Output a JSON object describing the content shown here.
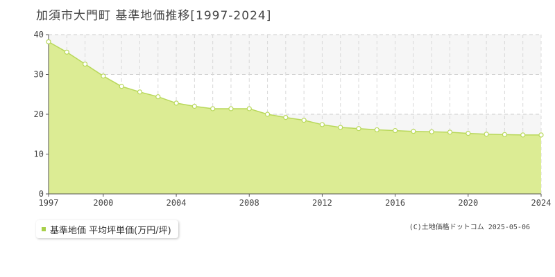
{
  "chart_data": {
    "type": "area",
    "title": "加須市大門町 基準地価推移[1997-2024]",
    "x": [
      1997,
      1998,
      1999,
      2000,
      2001,
      2002,
      2003,
      2004,
      2005,
      2006,
      2007,
      2008,
      2009,
      2010,
      2011,
      2012,
      2013,
      2014,
      2015,
      2016,
      2017,
      2018,
      2019,
      2020,
      2021,
      2022,
      2023,
      2024
    ],
    "series": [
      {
        "name": "基準地価 平均坪単価(万円/坪)",
        "values": [
          38.2,
          35.6,
          32.6,
          29.6,
          27.0,
          25.6,
          24.4,
          22.8,
          22.0,
          21.4,
          21.4,
          21.4,
          20.0,
          19.2,
          18.5,
          17.4,
          16.7,
          16.4,
          16.1,
          15.9,
          15.7,
          15.6,
          15.5,
          15.2,
          15.0,
          14.9,
          14.8,
          14.8
        ]
      }
    ],
    "ylim": [
      0,
      40
    ],
    "yticks": [
      "0",
      "10",
      "20",
      "30",
      "40"
    ],
    "xticks": [
      "1997",
      "2000",
      "2004",
      "2008",
      "2012",
      "2016",
      "2020",
      "2024"
    ],
    "grid": true,
    "legend_position": "bottom-left",
    "colors": {
      "fill": "#dcec94",
      "line": "#b8d85a",
      "marker_fill": "#ffffff",
      "marker_stroke": "#b8d85a",
      "band": "#f6f6f6"
    }
  },
  "legend": {
    "label": "基準地価 平均坪単価(万円/坪)"
  },
  "credit": "(C)土地価格ドットコム 2025-05-06"
}
